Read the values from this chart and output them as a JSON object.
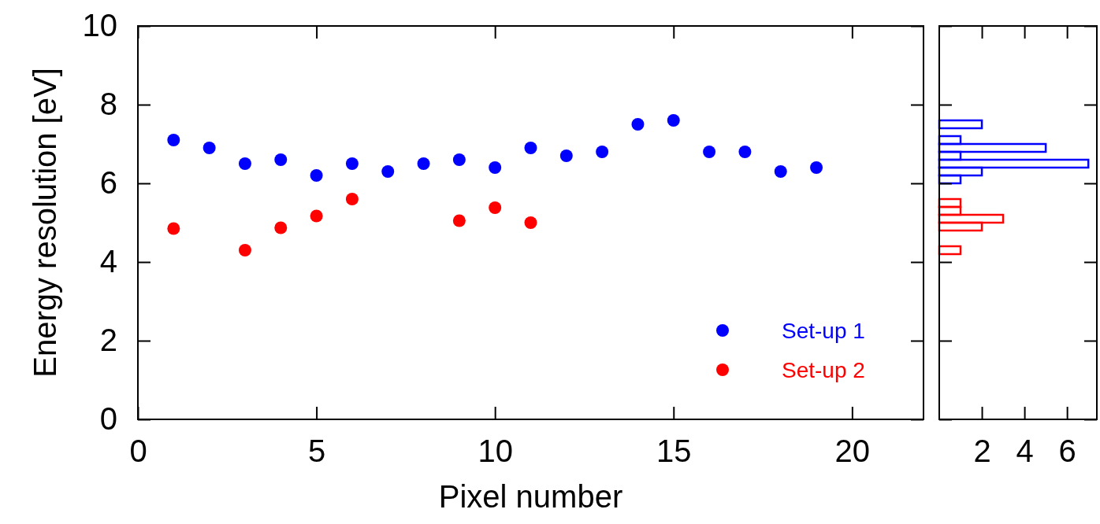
{
  "chart_data": [
    {
      "type": "scatter",
      "xlabel": "Pixel number",
      "ylabel": "Energy resolution [eV]",
      "xlim": [
        0,
        22
      ],
      "xticks": [
        0,
        5,
        10,
        15,
        20
      ],
      "ylim": [
        0,
        10
      ],
      "yticks": [
        0,
        2,
        4,
        6,
        8,
        10
      ],
      "marker": "circle",
      "legend": "bottom right",
      "grid": false,
      "series": [
        {
          "name": "Set-up 1",
          "color": "#0000ff",
          "x": [
            1,
            2,
            3,
            4,
            5,
            6,
            7,
            8,
            9,
            10,
            11,
            12,
            13,
            14,
            15,
            16,
            17,
            18,
            19
          ],
          "values": [
            7.1,
            6.9,
            6.5,
            6.6,
            6.2,
            6.5,
            6.3,
            6.5,
            6.6,
            6.4,
            6.9,
            6.7,
            6.8,
            7.5,
            7.6,
            6.8,
            6.8,
            6.3,
            6.4
          ]
        },
        {
          "name": "Set-up 2",
          "color": "#ff0000",
          "x": [
            1,
            3,
            4,
            5,
            6,
            9,
            10,
            11
          ],
          "values": [
            4.85,
            4.3,
            4.87,
            5.17,
            5.6,
            5.05,
            5.38,
            5.0
          ]
        }
      ]
    },
    {
      "type": "histogram",
      "orientation": "horizontal",
      "xlim": [
        0,
        7.4
      ],
      "xticks": [
        2,
        4,
        6
      ],
      "ylim": [
        0,
        10
      ],
      "yticks": [
        0,
        2,
        4,
        6,
        8,
        10
      ],
      "tick_labels": "x",
      "grid": false,
      "bins": [
        4.0,
        4.2,
        4.4,
        4.6,
        4.8,
        5.0,
        5.2,
        5.4,
        5.6,
        5.8,
        6.0,
        6.2,
        6.4,
        6.6,
        6.8,
        7.0,
        7.2,
        7.4,
        7.6
      ],
      "series": [
        {
          "color": "#0000ff",
          "values": [
            0,
            0,
            0,
            0,
            0,
            0,
            0,
            0,
            0,
            0,
            1,
            2,
            7,
            1,
            5,
            1,
            0,
            2
          ]
        },
        {
          "color": "#ff0000",
          "values": [
            0,
            1,
            0,
            0,
            2,
            3,
            1,
            1,
            0,
            0,
            0,
            0,
            0,
            0,
            0,
            0,
            0,
            0
          ]
        }
      ]
    }
  ]
}
